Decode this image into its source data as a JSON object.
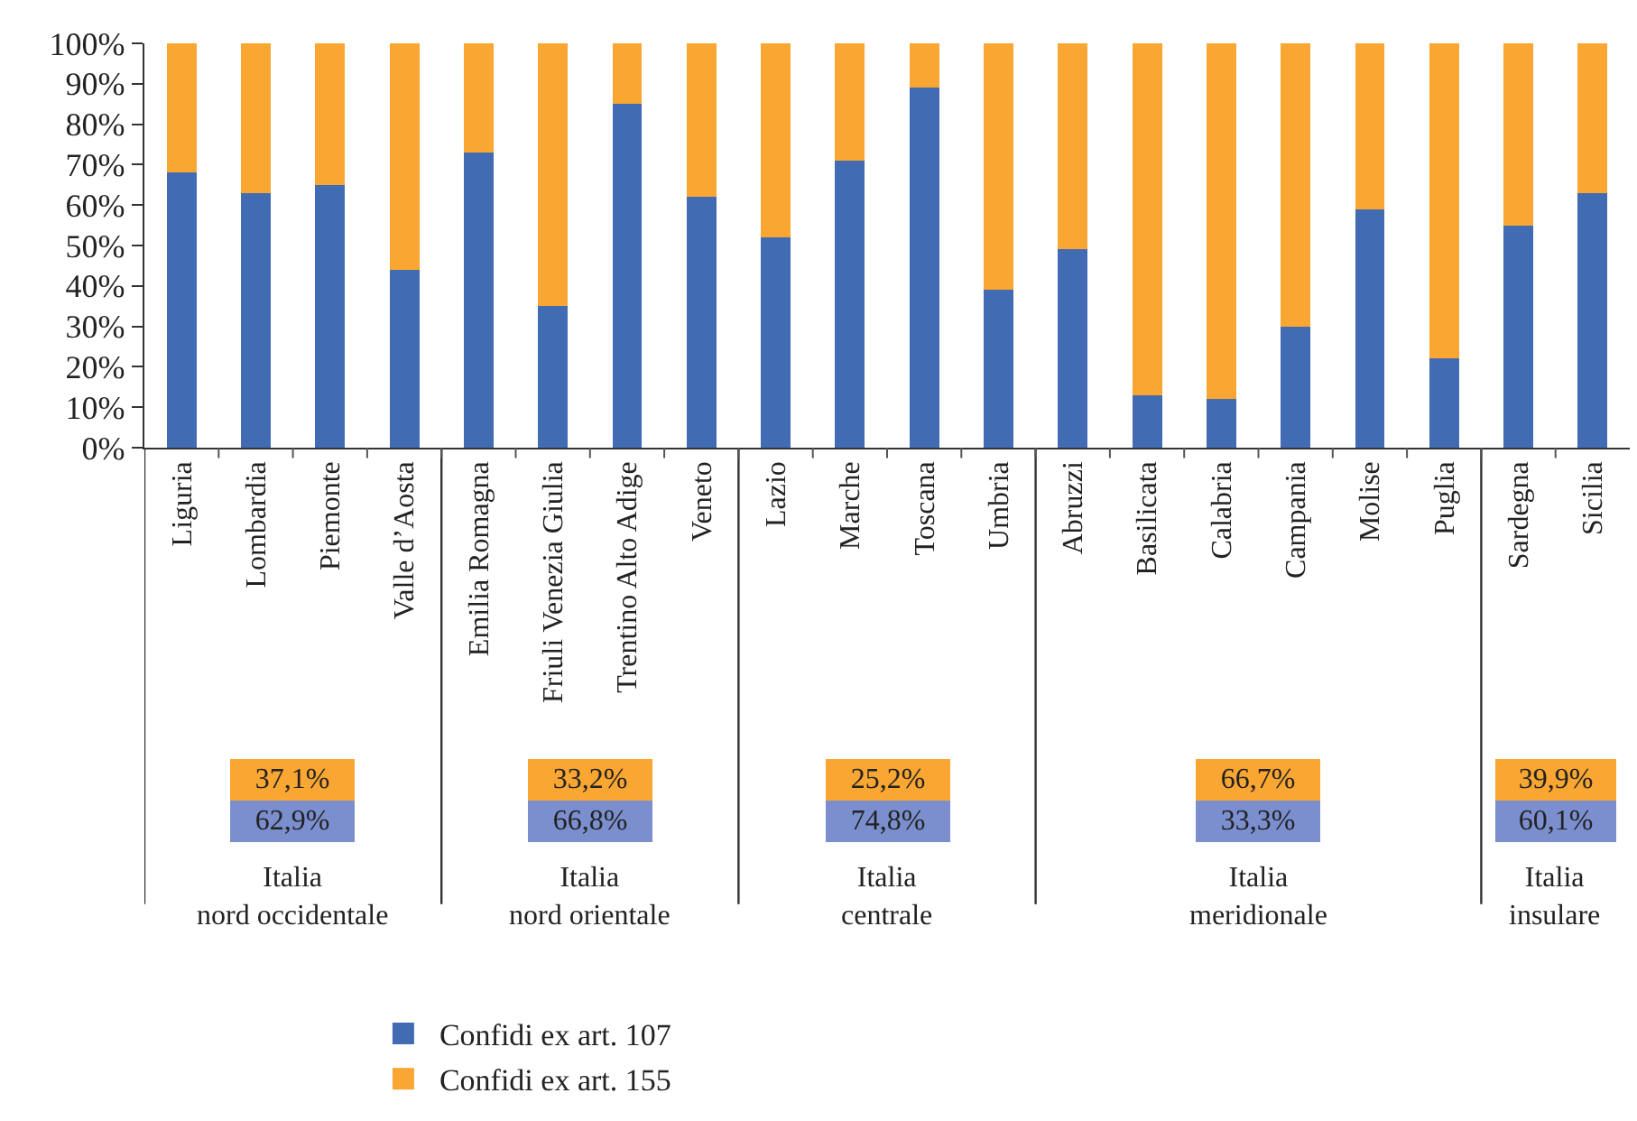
{
  "chart_data": {
    "type": "bar",
    "stacked": true,
    "legend": "bottom",
    "grid": false,
    "categories": [
      "Liguria",
      "Lombardia",
      "Piemonte",
      "Valle d’Aosta",
      "Emilia Romagna",
      "Friuli Venezia Giulia",
      "Trentino Alto Adige",
      "Veneto",
      "Lazio",
      "Marche",
      "Toscana",
      "Umbria",
      "Abruzzi",
      "Basilicata",
      "Calabria",
      "Campania",
      "Molise",
      "Puglia",
      "Sardegna",
      "Sicilia"
    ],
    "series": [
      {
        "name": "Confidi ex art. 107",
        "color": "#416bb3",
        "values": [
          68,
          63,
          65,
          44,
          73,
          35,
          85,
          62,
          52,
          71,
          89,
          39,
          49,
          13,
          12,
          30,
          59,
          22,
          55,
          63
        ]
      },
      {
        "name": "Confidi ex art. 155",
        "color": "#f9a632",
        "values": [
          32,
          37,
          35,
          56,
          27,
          65,
          15,
          38,
          48,
          29,
          11,
          61,
          51,
          87,
          88,
          70,
          41,
          78,
          45,
          37
        ]
      }
    ],
    "ylim": [
      0,
      100
    ],
    "yticks": [
      {
        "value": 0,
        "label": "0%"
      },
      {
        "value": 10,
        "label": "10%"
      },
      {
        "value": 20,
        "label": "20%"
      },
      {
        "value": 30,
        "label": "30%"
      },
      {
        "value": 40,
        "label": "40%"
      },
      {
        "value": 50,
        "label": "50%"
      },
      {
        "value": 60,
        "label": "60%"
      },
      {
        "value": 70,
        "label": "70%"
      },
      {
        "value": 80,
        "label": "80%"
      },
      {
        "value": 90,
        "label": "90%"
      },
      {
        "value": 100,
        "label": "100%"
      }
    ],
    "annotations": [
      "37,1%",
      "62,9%",
      "Italia\nnord occidentale",
      "33,2%",
      "66,8%",
      "Italia\nnord orientale",
      "25,2%",
      "74,8%",
      "Italia\ncentrale",
      "66,7%",
      "33,3%",
      "Italia\nmeridionale",
      "39,9%",
      "60,1%",
      "Italia\ninsulare"
    ]
  }
}
